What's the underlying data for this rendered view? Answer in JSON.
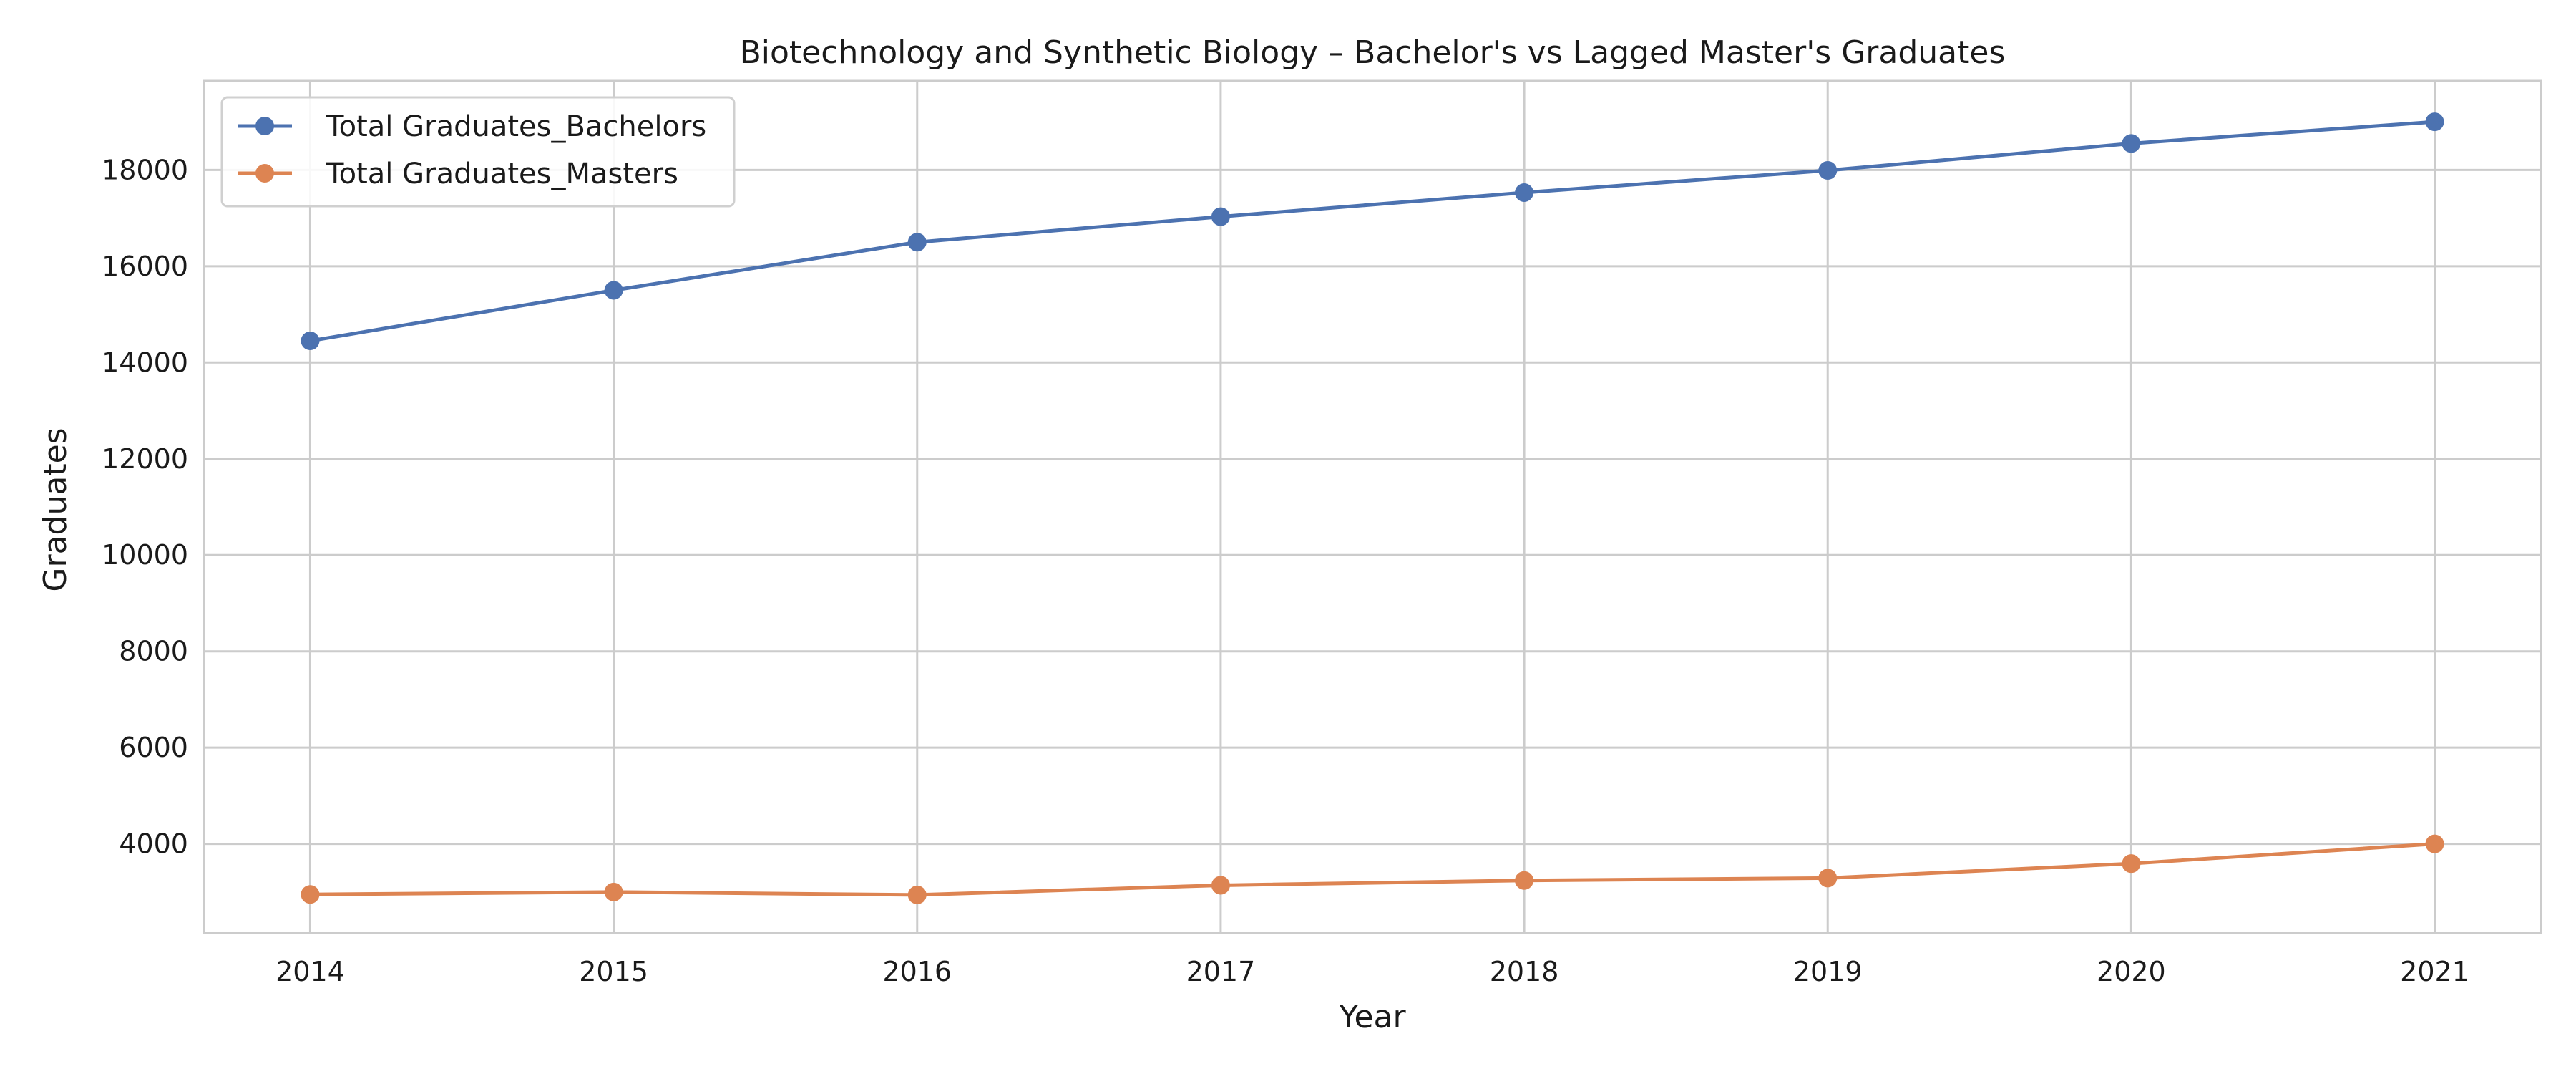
{
  "chart_data": {
    "type": "line",
    "title": "Biotechnology and Synthetic Biology – Bachelor's vs Lagged Master's Graduates",
    "xlabel": "Year",
    "ylabel": "Graduates",
    "x": [
      2014,
      2015,
      2016,
      2017,
      2018,
      2019,
      2020,
      2021
    ],
    "x_ticks": [
      "2014",
      "2015",
      "2016",
      "2017",
      "2018",
      "2019",
      "2020",
      "2021"
    ],
    "y_ticks": [
      "4000",
      "6000",
      "8000",
      "10000",
      "12000",
      "14000",
      "16000",
      "18000"
    ],
    "xlim": [
      2013.65,
      2021.35
    ],
    "ylim": [
      2150,
      19850
    ],
    "grid": true,
    "legend_position": "top-left",
    "series": [
      {
        "name": "Total Graduates_Bachelors",
        "color": "#4c72b0",
        "marker": "circle",
        "values": [
          14450,
          15500,
          16500,
          17030,
          17530,
          17990,
          18550,
          19000
        ]
      },
      {
        "name": "Total Graduates_Masters",
        "color": "#dd8452",
        "marker": "circle",
        "values": [
          2950,
          3000,
          2940,
          3140,
          3240,
          3290,
          3590,
          4000
        ]
      }
    ]
  }
}
